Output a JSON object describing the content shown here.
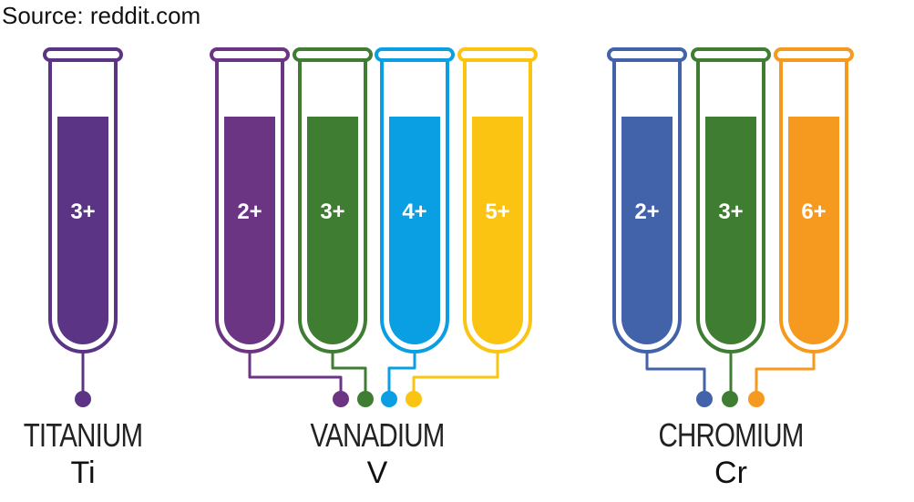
{
  "source": "Source: reddit.com",
  "elements": [
    {
      "name": "TITANIUM",
      "symbol": "Ti",
      "tubes": [
        {
          "ion": "3+",
          "color": "#5b3485"
        }
      ]
    },
    {
      "name": "VANADIUM",
      "symbol": "V",
      "tubes": [
        {
          "ion": "2+",
          "color": "#6b3583"
        },
        {
          "ion": "3+",
          "color": "#3f7d32"
        },
        {
          "ion": "4+",
          "color": "#0a9fe2"
        },
        {
          "ion": "5+",
          "color": "#fbc412"
        }
      ]
    },
    {
      "name": "CHROMIUM",
      "symbol": "Cr",
      "tubes": [
        {
          "ion": "2+",
          "color": "#4262aa"
        },
        {
          "ion": "3+",
          "color": "#3f7d32"
        },
        {
          "ion": "6+",
          "color": "#f59a1e"
        }
      ]
    }
  ]
}
